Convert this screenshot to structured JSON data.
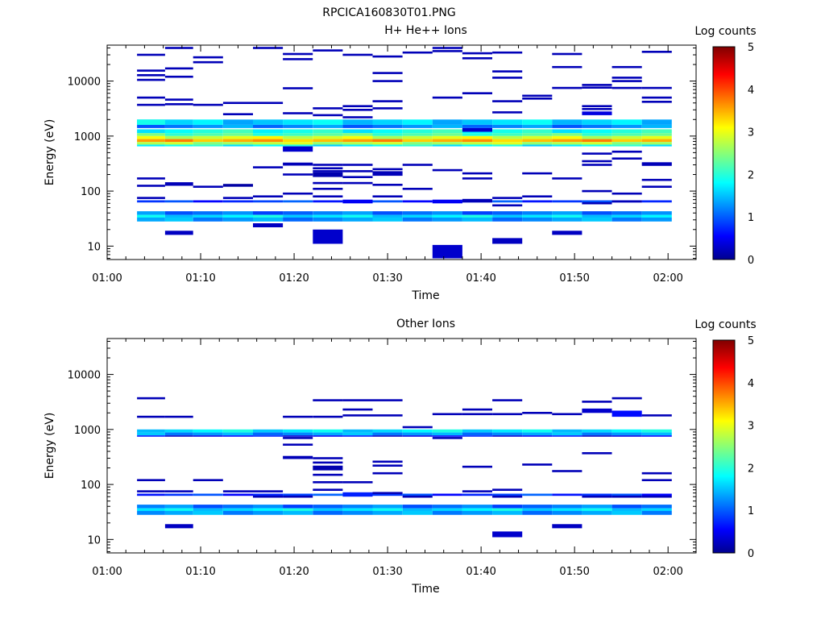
{
  "figure": {
    "title": "RPCICA160830T01.PNG"
  },
  "colors": {
    "background": "#ffffff",
    "axes": "#000000"
  },
  "colormap": {
    "name": "jet",
    "stops": [
      "#00008f",
      "#0000ff",
      "#00ffff",
      "#ffff00",
      "#ff0000",
      "#800000"
    ]
  },
  "chart_data": [
    {
      "type": "heatmap",
      "title": "H+ He++ Ions",
      "xlabel": "Time",
      "ylabel": "Energy (eV)",
      "xaxis": {
        "ticks_min": [
          0,
          10,
          20,
          30,
          40,
          50,
          60
        ],
        "ticklabels": [
          "01:00",
          "01:10",
          "01:20",
          "01:30",
          "01:40",
          "01:50",
          "02:00"
        ],
        "range_min": [
          0,
          63
        ]
      },
      "yaxis": {
        "scale": "log",
        "range": [
          5.7,
          45000
        ],
        "ticks": [
          10,
          100,
          1000,
          10000
        ],
        "ticklabels": [
          "10",
          "100",
          "1000",
          "10000"
        ]
      },
      "colorbar": {
        "label": "Log counts",
        "range": [
          0,
          5
        ],
        "ticks": [
          0,
          1,
          2,
          3,
          4,
          5
        ],
        "ticklabels": [
          "0",
          "1",
          "2",
          "3",
          "4",
          "5"
        ]
      },
      "time_columns_min": [
        3.2,
        6.2,
        9.2,
        12.4,
        15.6,
        18.8,
        22.0,
        25.2,
        28.4,
        31.6,
        34.8,
        38.0,
        41.2,
        44.4,
        47.6,
        50.8,
        54.0,
        57.2,
        60.4
      ],
      "bands": [
        {
          "emin": 1130,
          "emax": 1330,
          "value": 1.9
        },
        {
          "emin": 1000,
          "emax": 1130,
          "value": 2.2
        },
        {
          "emin": 880,
          "emax": 1000,
          "value": 2.9
        },
        {
          "emin": 780,
          "emax": 880,
          "value": 3.5
        },
        {
          "emin": 700,
          "emax": 780,
          "value": 2.7
        },
        {
          "emin": 650,
          "emax": 700,
          "value": 1.8
        },
        {
          "emin": 1600,
          "emax": 2000,
          "value": 1.6
        },
        {
          "emin": 1400,
          "emax": 1600,
          "value": 1.2
        },
        {
          "emin": 37,
          "emax": 43,
          "value": 1.1
        },
        {
          "emin": 33,
          "emax": 37,
          "value": 1.7
        },
        {
          "emin": 28,
          "emax": 33,
          "value": 1.3
        },
        {
          "emin": 62,
          "emax": 68,
          "value": 0.8
        }
      ],
      "cells": [
        [
          6.2,
          9.2,
          16,
          19,
          0.25
        ],
        [
          15.6,
          18.8,
          22,
          26,
          0.25
        ],
        [
          22.0,
          25.2,
          11,
          20,
          0.3
        ],
        [
          34.8,
          38.0,
          6,
          10.5,
          0.3
        ],
        [
          41.2,
          44.4,
          11,
          14,
          0.25
        ],
        [
          47.6,
          50.8,
          16,
          19,
          0.25
        ],
        [
          18.8,
          22.0,
          520,
          650,
          0.3
        ],
        [
          18.8,
          22.0,
          290,
          330,
          0.2
        ],
        [
          22.0,
          25.2,
          180,
          220,
          0.15
        ],
        [
          25.2,
          28.4,
          60,
          70,
          0.5
        ],
        [
          34.8,
          38.0,
          60,
          70,
          0.5
        ],
        [
          38.0,
          41.2,
          62,
          72,
          0.2
        ],
        [
          12.4,
          15.6,
          120,
          135,
          0.1
        ],
        [
          6.2,
          9.2,
          125,
          145,
          0.2
        ],
        [
          3.2,
          6.2,
          1600,
          2000,
          1.9
        ],
        [
          38.0,
          41.2,
          1200,
          1400,
          0.3
        ],
        [
          50.8,
          54.0,
          2400,
          2800,
          0.4
        ],
        [
          28.4,
          31.6,
          190,
          230,
          0.2
        ]
      ],
      "lines": [
        [
          3.2,
          6.2,
          10500
        ],
        [
          3.2,
          6.2,
          12800
        ],
        [
          3.2,
          6.2,
          15500
        ],
        [
          3.2,
          6.2,
          30000
        ],
        [
          3.2,
          6.2,
          5000
        ],
        [
          3.2,
          6.2,
          3700
        ],
        [
          3.2,
          6.2,
          170
        ],
        [
          3.2,
          6.2,
          125
        ],
        [
          3.2,
          6.2,
          75
        ],
        [
          6.2,
          9.2,
          40000
        ],
        [
          6.2,
          9.2,
          17000
        ],
        [
          6.2,
          9.2,
          12000
        ],
        [
          6.2,
          9.2,
          4600
        ],
        [
          6.2,
          9.2,
          3800
        ],
        [
          9.2,
          12.4,
          27000
        ],
        [
          9.2,
          12.4,
          22000
        ],
        [
          9.2,
          12.4,
          3700
        ],
        [
          9.2,
          12.4,
          120
        ],
        [
          12.4,
          15.6,
          2500
        ],
        [
          12.4,
          15.6,
          4000
        ],
        [
          12.4,
          15.6,
          75
        ],
        [
          15.6,
          18.8,
          40000
        ],
        [
          15.6,
          18.8,
          4000
        ],
        [
          15.6,
          18.8,
          270
        ],
        [
          15.6,
          18.8,
          80
        ],
        [
          18.8,
          22.0,
          31000
        ],
        [
          18.8,
          22.0,
          25000
        ],
        [
          18.8,
          22.0,
          7400
        ],
        [
          18.8,
          22.0,
          2600
        ],
        [
          18.8,
          22.0,
          200
        ],
        [
          18.8,
          22.0,
          90
        ],
        [
          22.0,
          25.2,
          36000
        ],
        [
          22.0,
          25.2,
          3200
        ],
        [
          22.0,
          25.2,
          2400
        ],
        [
          22.0,
          25.2,
          300
        ],
        [
          22.0,
          25.2,
          260
        ],
        [
          22.0,
          25.2,
          230
        ],
        [
          22.0,
          25.2,
          140
        ],
        [
          22.0,
          25.2,
          110
        ],
        [
          22.0,
          25.2,
          80
        ],
        [
          25.2,
          28.4,
          30000
        ],
        [
          25.2,
          28.4,
          3500
        ],
        [
          25.2,
          28.4,
          3000
        ],
        [
          25.2,
          28.4,
          2200
        ],
        [
          25.2,
          28.4,
          300
        ],
        [
          25.2,
          28.4,
          230
        ],
        [
          25.2,
          28.4,
          180
        ],
        [
          25.2,
          28.4,
          140
        ],
        [
          28.4,
          31.6,
          28000
        ],
        [
          28.4,
          31.6,
          14000
        ],
        [
          28.4,
          31.6,
          10000
        ],
        [
          28.4,
          31.6,
          4300
        ],
        [
          28.4,
          31.6,
          3200
        ],
        [
          28.4,
          31.6,
          250
        ],
        [
          28.4,
          31.6,
          130
        ],
        [
          28.4,
          31.6,
          80
        ],
        [
          31.6,
          34.8,
          33000
        ],
        [
          31.6,
          34.8,
          300
        ],
        [
          31.6,
          34.8,
          110
        ],
        [
          34.8,
          38.0,
          40000
        ],
        [
          34.8,
          38.0,
          35000
        ],
        [
          34.8,
          38.0,
          5000
        ],
        [
          34.8,
          38.0,
          240
        ],
        [
          38.0,
          41.2,
          32000
        ],
        [
          38.0,
          41.2,
          26000
        ],
        [
          38.0,
          41.2,
          6000
        ],
        [
          38.0,
          41.2,
          210
        ],
        [
          38.0,
          41.2,
          170
        ],
        [
          41.2,
          44.4,
          33000
        ],
        [
          41.2,
          44.4,
          15000
        ],
        [
          41.2,
          44.4,
          11500
        ],
        [
          41.2,
          44.4,
          4300
        ],
        [
          41.2,
          44.4,
          2700
        ],
        [
          41.2,
          44.4,
          75
        ],
        [
          41.2,
          44.4,
          55
        ],
        [
          44.4,
          47.6,
          5400
        ],
        [
          44.4,
          47.6,
          4800
        ],
        [
          44.4,
          47.6,
          210
        ],
        [
          44.4,
          47.6,
          80
        ],
        [
          47.6,
          50.8,
          31000
        ],
        [
          47.6,
          50.8,
          18000
        ],
        [
          47.6,
          50.8,
          7500
        ],
        [
          47.6,
          50.8,
          170
        ],
        [
          50.8,
          54.0,
          8500
        ],
        [
          50.8,
          54.0,
          7600
        ],
        [
          50.8,
          54.0,
          3500
        ],
        [
          50.8,
          54.0,
          3100
        ],
        [
          50.8,
          54.0,
          480
        ],
        [
          50.8,
          54.0,
          350
        ],
        [
          50.8,
          54.0,
          300
        ],
        [
          50.8,
          54.0,
          100
        ],
        [
          50.8,
          54.0,
          60
        ],
        [
          54.0,
          57.2,
          18000
        ],
        [
          54.0,
          57.2,
          11500
        ],
        [
          54.0,
          57.2,
          10000
        ],
        [
          54.0,
          57.2,
          7500
        ],
        [
          54.0,
          57.2,
          520
        ],
        [
          54.0,
          57.2,
          390
        ],
        [
          54.0,
          57.2,
          90
        ],
        [
          54.0,
          57.2,
          65
        ],
        [
          57.2,
          60.4,
          34000
        ],
        [
          57.2,
          60.4,
          7500
        ],
        [
          57.2,
          60.4,
          5000
        ],
        [
          57.2,
          60.4,
          4200
        ],
        [
          57.2,
          60.4,
          320
        ],
        [
          57.2,
          60.4,
          300
        ],
        [
          57.2,
          60.4,
          160
        ],
        [
          57.2,
          60.4,
          120
        ]
      ]
    },
    {
      "type": "heatmap",
      "title": "Other Ions",
      "xlabel": "Time",
      "ylabel": "Energy (eV)",
      "xaxis": {
        "ticks_min": [
          0,
          10,
          20,
          30,
          40,
          50,
          60
        ],
        "ticklabels": [
          "01:00",
          "01:10",
          "01:20",
          "01:30",
          "01:40",
          "01:50",
          "02:00"
        ],
        "range_min": [
          0,
          63
        ]
      },
      "yaxis": {
        "scale": "log",
        "range": [
          5.7,
          45000
        ],
        "ticks": [
          10,
          100,
          1000,
          10000
        ],
        "ticklabels": [
          "10",
          "100",
          "1000",
          "10000"
        ]
      },
      "colorbar": {
        "label": "Log counts",
        "range": [
          0,
          5
        ],
        "ticks": [
          0,
          1,
          2,
          3,
          4,
          5
        ],
        "ticklabels": [
          "0",
          "1",
          "2",
          "3",
          "4",
          "5"
        ]
      },
      "time_columns_min": [
        3.2,
        6.2,
        9.2,
        12.4,
        15.6,
        18.8,
        22.0,
        25.2,
        28.4,
        31.6,
        34.8,
        38.0,
        41.2,
        44.4,
        47.6,
        50.8,
        54.0,
        57.2,
        60.4
      ],
      "bands": [
        {
          "emin": 880,
          "emax": 1000,
          "value": 1.7
        },
        {
          "emin": 780,
          "emax": 880,
          "value": 1.3
        },
        {
          "emin": 740,
          "emax": 780,
          "value": 0.5
        },
        {
          "emin": 37,
          "emax": 43,
          "value": 1.1
        },
        {
          "emin": 33,
          "emax": 37,
          "value": 1.7
        },
        {
          "emin": 28,
          "emax": 33,
          "value": 1.3
        },
        {
          "emin": 62,
          "emax": 68,
          "value": 0.8
        }
      ],
      "cells": [
        [
          6.2,
          9.2,
          16,
          19,
          0.25
        ],
        [
          41.2,
          44.4,
          11,
          14,
          0.3
        ],
        [
          47.6,
          50.8,
          16,
          19,
          0.25
        ],
        [
          18.8,
          22.0,
          290,
          330,
          0.2
        ],
        [
          25.2,
          28.4,
          60,
          72,
          0.7
        ],
        [
          50.8,
          54.0,
          2000,
          2400,
          0.3
        ],
        [
          54.0,
          57.2,
          1700,
          2200,
          0.6
        ],
        [
          22.0,
          25.2,
          180,
          220,
          0.15
        ]
      ],
      "lines": [
        [
          3.2,
          6.2,
          3700
        ],
        [
          3.2,
          6.2,
          1700
        ],
        [
          3.2,
          6.2,
          120
        ],
        [
          3.2,
          6.2,
          75
        ],
        [
          6.2,
          9.2,
          1700
        ],
        [
          6.2,
          9.2,
          75
        ],
        [
          9.2,
          12.4,
          120
        ],
        [
          12.4,
          15.6,
          75
        ],
        [
          15.6,
          18.8,
          75
        ],
        [
          15.6,
          18.8,
          60
        ],
        [
          18.8,
          22.0,
          1700
        ],
        [
          18.8,
          22.0,
          700
        ],
        [
          18.8,
          22.0,
          530
        ],
        [
          18.8,
          22.0,
          60
        ],
        [
          22.0,
          25.2,
          3400
        ],
        [
          22.0,
          25.2,
          1700
        ],
        [
          22.0,
          25.2,
          300
        ],
        [
          22.0,
          25.2,
          250
        ],
        [
          22.0,
          25.2,
          150
        ],
        [
          22.0,
          25.2,
          110
        ],
        [
          22.0,
          25.2,
          80
        ],
        [
          25.2,
          28.4,
          3400
        ],
        [
          25.2,
          28.4,
          2300
        ],
        [
          25.2,
          28.4,
          1800
        ],
        [
          25.2,
          28.4,
          110
        ],
        [
          28.4,
          31.6,
          3400
        ],
        [
          28.4,
          31.6,
          1800
        ],
        [
          28.4,
          31.6,
          260
        ],
        [
          28.4,
          31.6,
          220
        ],
        [
          28.4,
          31.6,
          160
        ],
        [
          28.4,
          31.6,
          70
        ],
        [
          31.6,
          34.8,
          1100
        ],
        [
          31.6,
          34.8,
          60
        ],
        [
          34.8,
          38.0,
          1900
        ],
        [
          34.8,
          38.0,
          700
        ],
        [
          38.0,
          41.2,
          2300
        ],
        [
          38.0,
          41.2,
          1900
        ],
        [
          38.0,
          41.2,
          210
        ],
        [
          38.0,
          41.2,
          75
        ],
        [
          41.2,
          44.4,
          3400
        ],
        [
          41.2,
          44.4,
          1900
        ],
        [
          41.2,
          44.4,
          80
        ],
        [
          41.2,
          44.4,
          60
        ],
        [
          44.4,
          47.6,
          2000
        ],
        [
          44.4,
          47.6,
          230
        ],
        [
          47.6,
          50.8,
          1900
        ],
        [
          47.6,
          50.8,
          175
        ],
        [
          50.8,
          54.0,
          3200
        ],
        [
          50.8,
          54.0,
          370
        ],
        [
          50.8,
          54.0,
          60
        ],
        [
          54.0,
          57.2,
          3700
        ],
        [
          54.0,
          57.2,
          60
        ],
        [
          57.2,
          60.4,
          1800
        ],
        [
          57.2,
          60.4,
          160
        ],
        [
          57.2,
          60.4,
          120
        ],
        [
          57.2,
          60.4,
          60
        ]
      ]
    }
  ]
}
